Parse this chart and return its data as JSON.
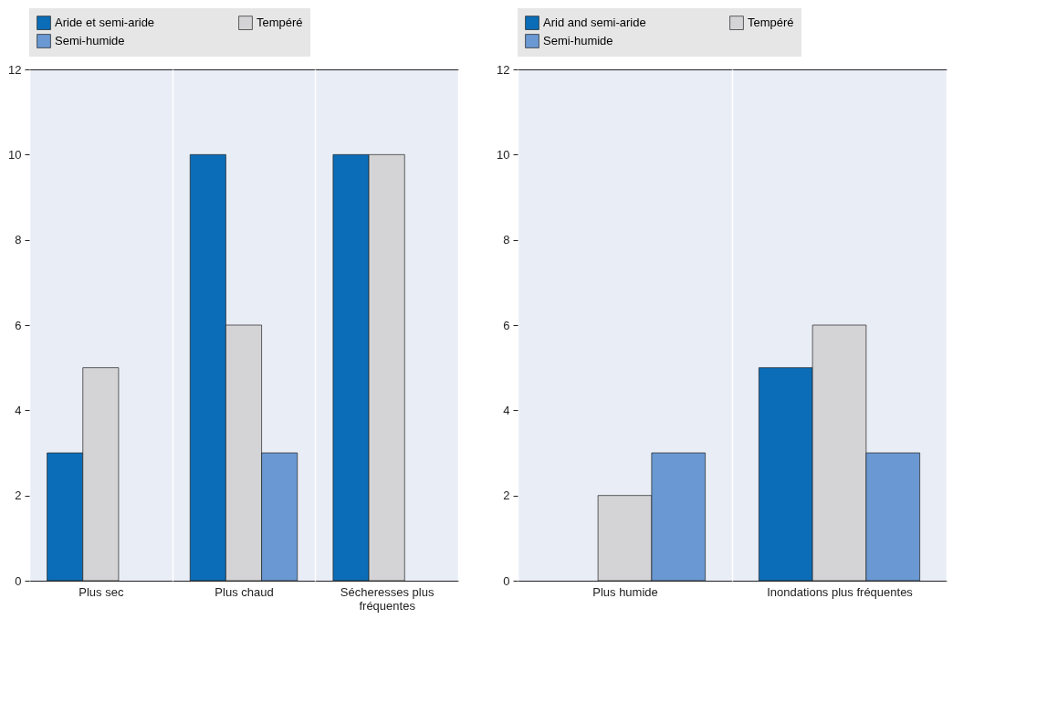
{
  "chart_data": [
    {
      "type": "bar",
      "categories": [
        "Plus sec",
        "Plus chaud",
        "Sécheresses plus fréquentes"
      ],
      "series": [
        {
          "name": "Aride et semi-aride",
          "color": "#0b6db7",
          "values": [
            3,
            10,
            10
          ]
        },
        {
          "name": "Tempéré",
          "color": "#d4d4d6",
          "values": [
            5,
            6,
            10
          ]
        },
        {
          "name": "Semi-humide",
          "color": "#6a98d2",
          "values": [
            null,
            3,
            null
          ]
        }
      ],
      "ylim": [
        0,
        12
      ],
      "yticks": [
        0,
        2,
        4,
        6,
        8,
        10,
        12
      ],
      "grid": "x",
      "legend": "top"
    },
    {
      "type": "bar",
      "categories": [
        "Plus humide",
        "Inondations plus fréquentes"
      ],
      "series": [
        {
          "name": "Arid and semi-aride",
          "color": "#0b6db7",
          "values": [
            null,
            5
          ]
        },
        {
          "name": "Tempéré",
          "color": "#d4d4d6",
          "values": [
            2,
            6
          ]
        },
        {
          "name": "Semi-humide",
          "color": "#6a98d2",
          "values": [
            3,
            3
          ]
        }
      ],
      "ylim": [
        0,
        12
      ],
      "yticks": [
        0,
        2,
        4,
        6,
        8,
        10,
        12
      ],
      "grid": "x",
      "legend": "top"
    }
  ]
}
